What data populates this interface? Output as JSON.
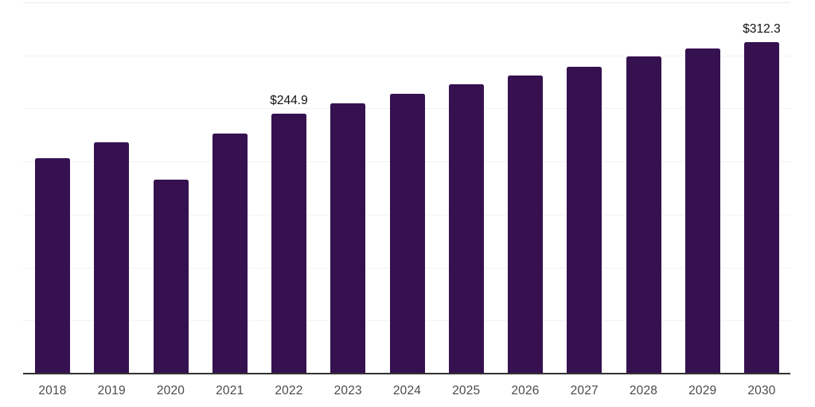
{
  "chart_data": {
    "type": "bar",
    "categories": [
      "2018",
      "2019",
      "2020",
      "2021",
      "2022",
      "2023",
      "2024",
      "2025",
      "2026",
      "2027",
      "2028",
      "2029",
      "2030"
    ],
    "values": [
      203.2,
      218.0,
      183.0,
      226.5,
      244.9,
      255.2,
      263.6,
      272.6,
      281.4,
      289.6,
      299.0,
      306.5,
      312.3
    ],
    "annotations": [
      {
        "category": "2022",
        "text": "$244.9"
      },
      {
        "category": "2030",
        "text": "$312.3"
      }
    ],
    "ylim": [
      0,
      350
    ],
    "grid_step": 50,
    "grid": true,
    "legend_position": "none",
    "xlabel": "",
    "ylabel": "",
    "colors": {
      "bar": "#36114F",
      "gridline": "#f2f2f2",
      "top_gridline": "#e9e9e9",
      "axis": "#333333",
      "tick_label": "#4a4a4a",
      "annotation_text": "#111111",
      "background": "#ffffff"
    }
  }
}
